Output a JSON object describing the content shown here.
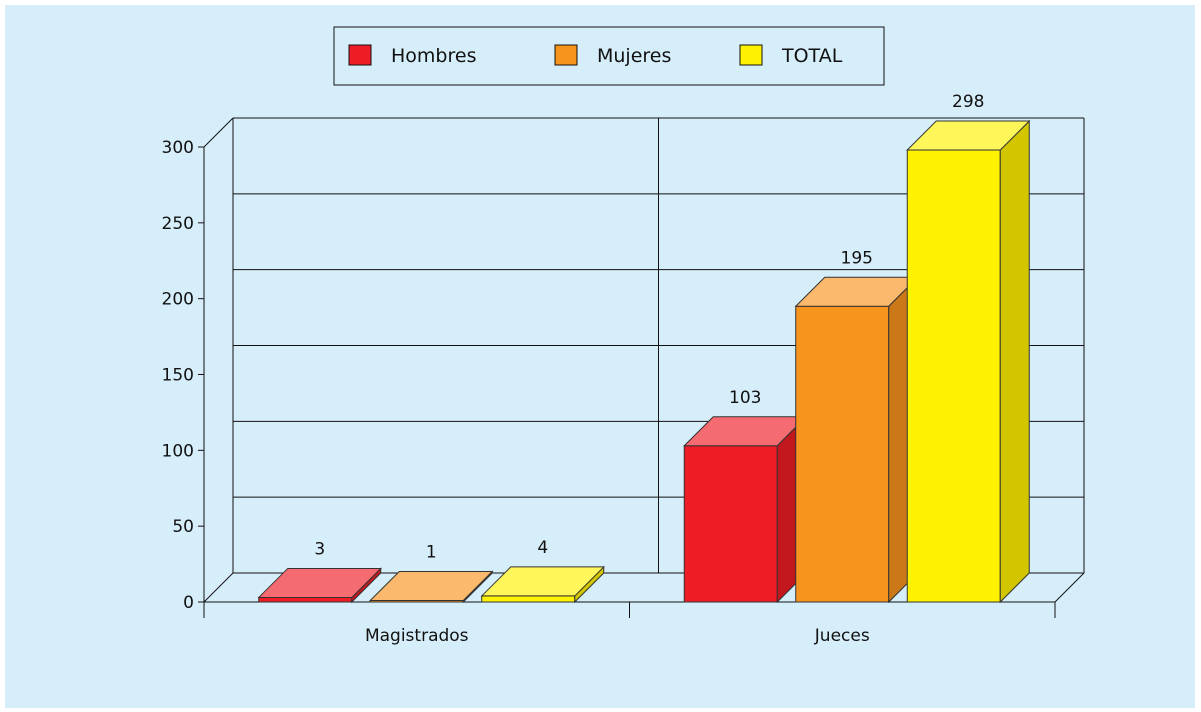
{
  "chart_data": {
    "type": "bar",
    "categories": [
      "Magistrados",
      "Jueces"
    ],
    "series": [
      {
        "name": "Hombres",
        "values": [
          3,
          103
        ],
        "color": "#ee1c25"
      },
      {
        "name": "Mujeres",
        "values": [
          1,
          195
        ],
        "color": "#f7941d"
      },
      {
        "name": "TOTAL",
        "values": [
          4,
          298
        ],
        "color": "#fff200"
      }
    ],
    "ylim": [
      0,
      300
    ],
    "yticks": [
      0,
      50,
      100,
      150,
      200,
      250,
      300
    ],
    "legend_position": "top-center",
    "grid": true,
    "style": "3d"
  }
}
